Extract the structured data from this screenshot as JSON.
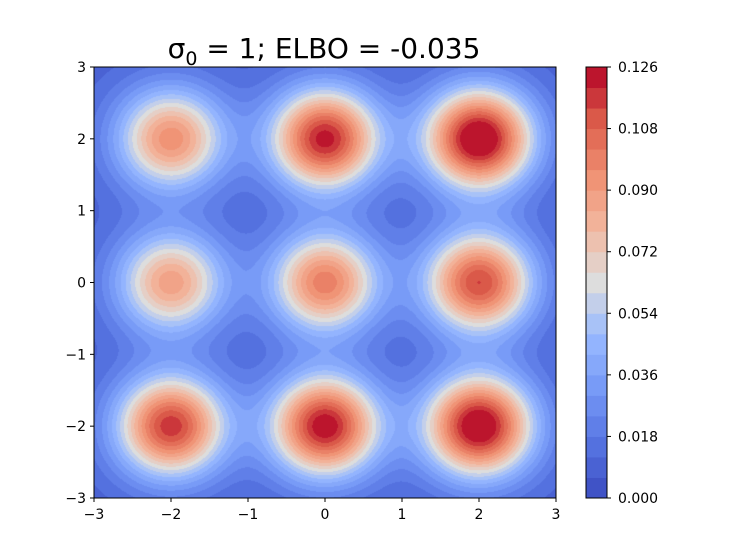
{
  "chart_data": {
    "type": "heatmap",
    "title_prefix": "σ",
    "title_subscript": "0",
    "title_suffix": " = 1; ELBO = -0.035",
    "xlabel": "",
    "ylabel": "",
    "xlim": [
      -3,
      3
    ],
    "ylim": [
      -3,
      3
    ],
    "x_ticks": [
      -3,
      -2,
      -1,
      0,
      1,
      2,
      3
    ],
    "y_ticks": [
      -3,
      -2,
      -1,
      0,
      1,
      2,
      3
    ],
    "x_tick_labels": [
      "−3",
      "−2",
      "−1",
      "0",
      "1",
      "2",
      "3"
    ],
    "y_tick_labels": [
      "−3",
      "−2",
      "−1",
      "0",
      "1",
      "2",
      "3"
    ],
    "grid": false,
    "colormap": "coolwarm",
    "mixture_sigma": 0.5,
    "components": [
      {
        "x": -2,
        "y": 2,
        "peak": 0.086
      },
      {
        "x": 0,
        "y": 2,
        "peak": 0.115
      },
      {
        "x": 2,
        "y": 2,
        "peak": 0.126
      },
      {
        "x": -2,
        "y": 0,
        "peak": 0.08
      },
      {
        "x": 0,
        "y": 0,
        "peak": 0.092
      },
      {
        "x": 2,
        "y": 0,
        "peak": 0.106
      },
      {
        "x": -2,
        "y": -2,
        "peak": 0.11
      },
      {
        "x": 0,
        "y": -2,
        "peak": 0.118
      },
      {
        "x": 2,
        "y": -2,
        "peak": 0.124
      }
    ],
    "background_level": 0.008,
    "contour_levels": 21,
    "colorbar": {
      "min": 0.0,
      "max": 0.126,
      "ticks": [
        0.0,
        0.018,
        0.036,
        0.054,
        0.072,
        0.09,
        0.108,
        0.126
      ],
      "tick_labels": [
        "0.000",
        "0.018",
        "0.036",
        "0.054",
        "0.072",
        "0.090",
        "0.108",
        "0.126"
      ]
    }
  }
}
